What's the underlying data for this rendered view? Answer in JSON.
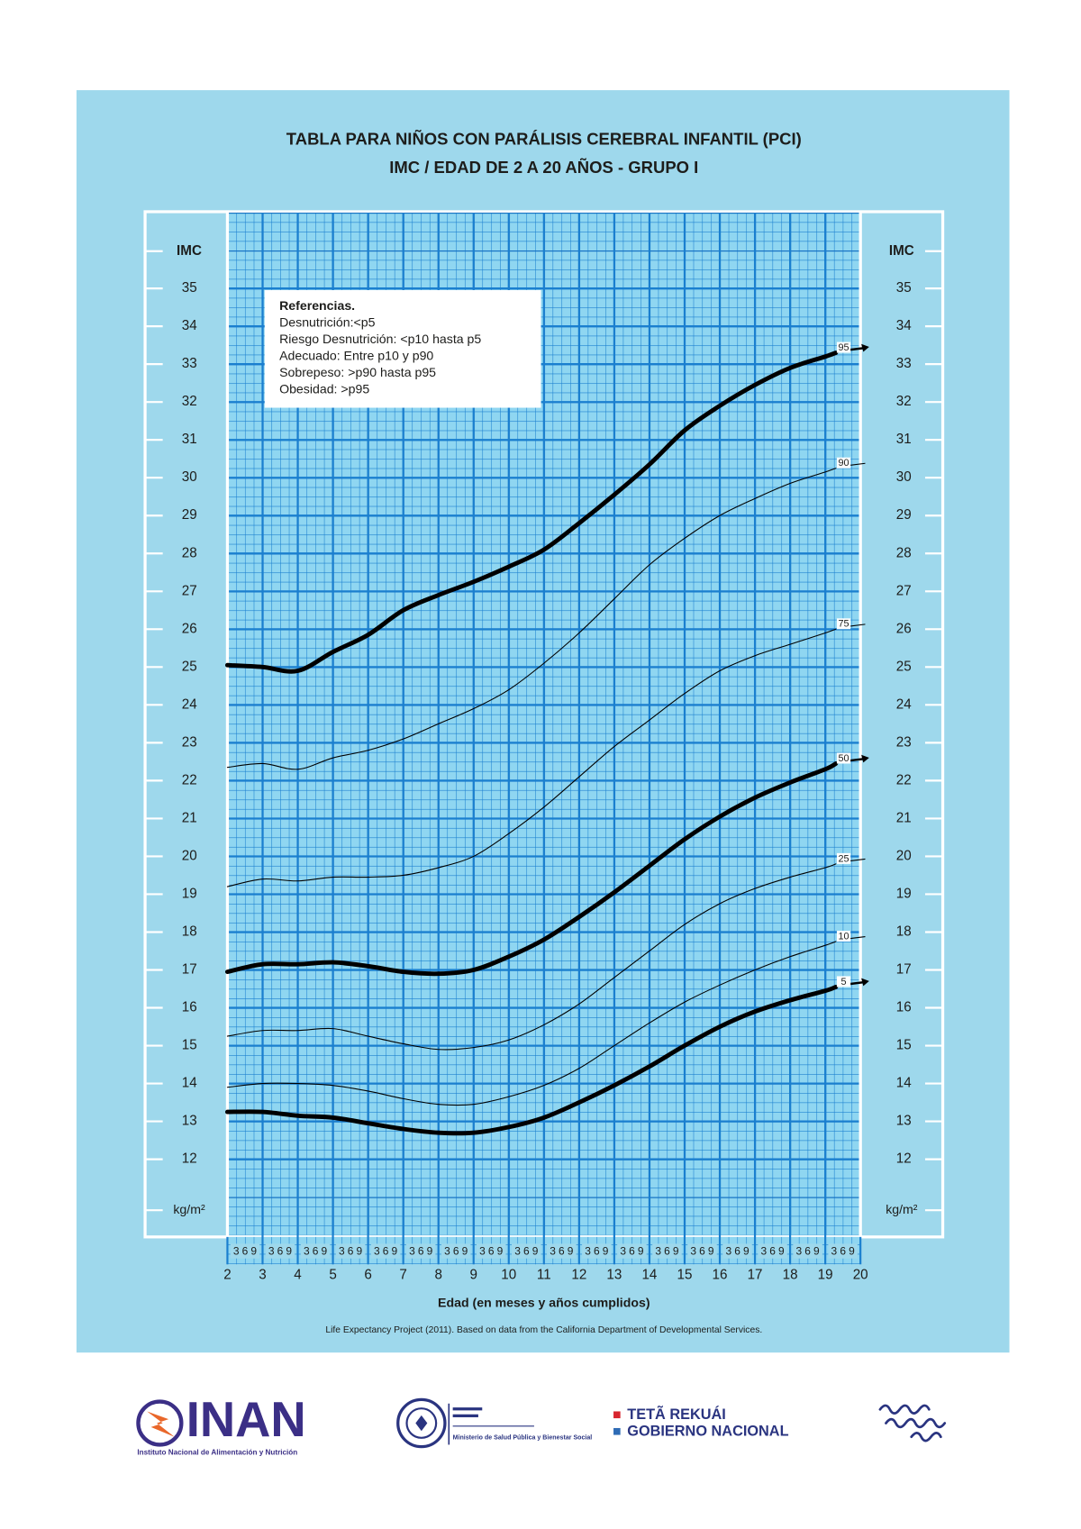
{
  "chart_data": {
    "type": "line",
    "title": "TABLA PARA NIÑOS CON PARÁLISIS CEREBRAL INFANTIL (PCI)",
    "subtitle": "IMC / EDAD DE 2 A 20 AÑOS - GRUPO I",
    "ylabel": "IMC",
    "yunit": "kg/m²",
    "xlabel": "Edad (en meses y años cumplidos)",
    "month_ticks": [
      3,
      6,
      9
    ],
    "xlim": [
      2,
      20
    ],
    "ylim": [
      10,
      37
    ],
    "xticks": [
      2,
      3,
      4,
      5,
      6,
      7,
      8,
      9,
      10,
      11,
      12,
      13,
      14,
      15,
      16,
      17,
      18,
      19,
      20
    ],
    "yticks": [
      12,
      13,
      14,
      15,
      16,
      17,
      18,
      19,
      20,
      21,
      22,
      23,
      24,
      25,
      26,
      27,
      28,
      29,
      30,
      31,
      32,
      33,
      34,
      35
    ],
    "grid": true,
    "grid_color": "#1a7fcf",
    "x": [
      2,
      3,
      4,
      5,
      6,
      7,
      8,
      9,
      10,
      11,
      12,
      13,
      14,
      15,
      16,
      17,
      18,
      19,
      19.3
    ],
    "series": [
      {
        "name": "95",
        "color": "#000000",
        "width": 4.5,
        "values": [
          25.05,
          25.0,
          24.9,
          25.4,
          25.85,
          26.5,
          26.9,
          27.25,
          27.65,
          28.1,
          28.8,
          29.55,
          30.35,
          31.25,
          31.9,
          32.45,
          32.9,
          33.2,
          33.3
        ]
      },
      {
        "name": "90",
        "color": "#000000",
        "width": 1,
        "values": [
          22.35,
          22.45,
          22.3,
          22.6,
          22.8,
          23.1,
          23.5,
          23.9,
          24.4,
          25.1,
          25.9,
          26.8,
          27.7,
          28.4,
          29.0,
          29.45,
          29.85,
          30.15,
          30.25
        ]
      },
      {
        "name": "75",
        "color": "#000000",
        "width": 1,
        "values": [
          19.2,
          19.4,
          19.35,
          19.45,
          19.45,
          19.5,
          19.7,
          20.0,
          20.6,
          21.3,
          22.1,
          22.9,
          23.6,
          24.3,
          24.9,
          25.3,
          25.6,
          25.9,
          26.0
        ]
      },
      {
        "name": "50",
        "color": "#000000",
        "width": 4.5,
        "values": [
          16.95,
          17.15,
          17.15,
          17.2,
          17.1,
          16.95,
          16.9,
          17.0,
          17.35,
          17.8,
          18.4,
          19.05,
          19.75,
          20.45,
          21.05,
          21.55,
          21.95,
          22.3,
          22.45
        ]
      },
      {
        "name": "25",
        "color": "#000000",
        "width": 1,
        "values": [
          15.25,
          15.4,
          15.4,
          15.45,
          15.25,
          15.05,
          14.9,
          14.95,
          15.15,
          15.55,
          16.1,
          16.8,
          17.5,
          18.2,
          18.75,
          19.15,
          19.45,
          19.7,
          19.8
        ]
      },
      {
        "name": "10",
        "color": "#000000",
        "width": 1,
        "values": [
          13.9,
          14.0,
          14.0,
          13.95,
          13.8,
          13.6,
          13.45,
          13.45,
          13.65,
          13.95,
          14.4,
          15.0,
          15.6,
          16.15,
          16.6,
          17.0,
          17.35,
          17.65,
          17.75
        ]
      },
      {
        "name": "5",
        "color": "#000000",
        "width": 4.5,
        "values": [
          13.25,
          13.25,
          13.15,
          13.1,
          12.95,
          12.8,
          12.7,
          12.7,
          12.85,
          13.1,
          13.5,
          13.95,
          14.45,
          15.0,
          15.5,
          15.9,
          16.2,
          16.45,
          16.55
        ]
      }
    ]
  },
  "references": {
    "title": "Referencias.",
    "lines": [
      "Desnutrición:<p5",
      "Riesgo Desnutrición: <p10 hasta p5",
      "Adecuado: Entre p10 y p90",
      "Sobrepeso: >p90 hasta p95",
      "Obesidad: >p95"
    ]
  },
  "source": "Life Expectancy Project (2011). Based on data from the California Department of Developmental Services.",
  "footer": {
    "inan": "INAN",
    "inan_name": "Instituto Nacional de Alimentación y Nutrición",
    "ministry": "Ministerio de Salud Pública y Bienestar Social",
    "gov1": "TETÃ REKUÁI",
    "gov2": "GOBIERNO NACIONAL"
  }
}
